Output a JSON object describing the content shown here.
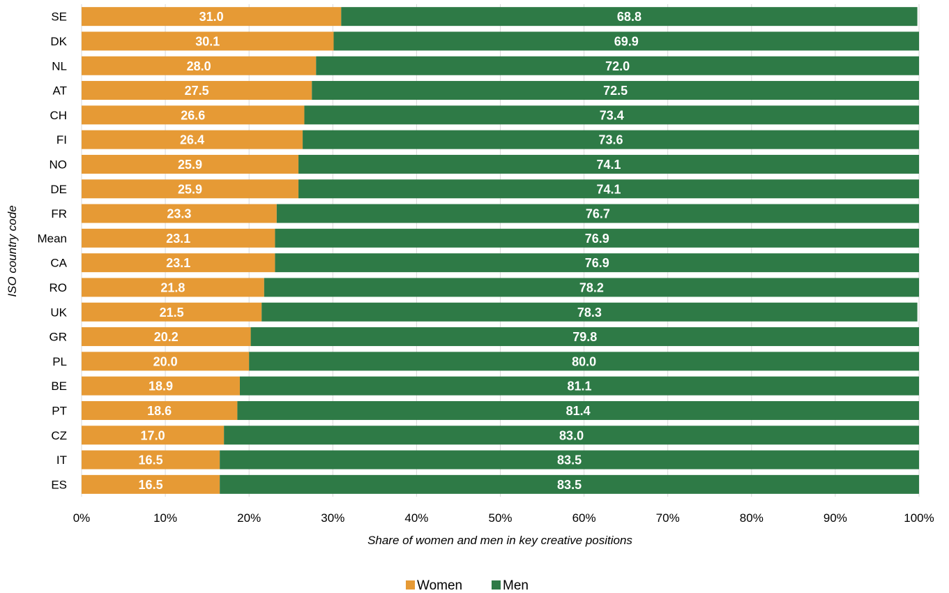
{
  "chart_data": {
    "type": "bar",
    "orientation": "horizontal",
    "stacked": true,
    "categories": [
      "SE",
      "DK",
      "NL",
      "AT",
      "CH",
      "FI",
      "NO",
      "DE",
      "FR",
      "Mean",
      "CA",
      "RO",
      "UK",
      "GR",
      "PL",
      "BE",
      "PT",
      "CZ",
      "IT",
      "ES"
    ],
    "series": [
      {
        "name": "Women",
        "color": "#E69A35",
        "values": [
          31.0,
          30.1,
          28.0,
          27.5,
          26.6,
          26.4,
          25.9,
          25.9,
          23.3,
          23.1,
          23.1,
          21.8,
          21.5,
          20.2,
          20.0,
          18.9,
          18.6,
          17.0,
          16.5,
          16.5
        ],
        "labels": [
          "31.0",
          "30.1",
          "28.0",
          "27.5",
          "26.6",
          "26.4",
          "25.9",
          "25.9",
          "23.3",
          "23.1",
          "23.1",
          "21.8",
          "21.5",
          "20.2",
          "20.0",
          "18.9",
          "18.6",
          "17.0",
          "16.5",
          "16.5"
        ]
      },
      {
        "name": "Men",
        "color": "#2E7A46",
        "values": [
          68.8,
          69.9,
          72.0,
          72.5,
          73.4,
          73.6,
          74.1,
          74.1,
          76.7,
          76.9,
          76.9,
          78.2,
          78.3,
          79.8,
          80.0,
          81.1,
          81.4,
          83.0,
          83.5,
          83.5
        ],
        "labels": [
          "68.8",
          "69.9",
          "72.0",
          "72.5",
          "73.4",
          "73.6",
          "74.1",
          "74.1",
          "76.7",
          "76.9",
          "76.9",
          "78.2",
          "78.3",
          "79.8",
          "80.0",
          "81.1",
          "81.4",
          "83.0",
          "83.5",
          "83.5"
        ]
      }
    ],
    "xlabel": "Share of women and men in key creative positions",
    "ylabel": "ISO country code",
    "xlim": [
      0,
      100
    ],
    "x_ticks": [
      "0%",
      "10%",
      "20%",
      "30%",
      "40%",
      "50%",
      "60%",
      "70%",
      "80%",
      "90%",
      "100%"
    ],
    "grid": "vertical",
    "legend": "bottom-center"
  }
}
